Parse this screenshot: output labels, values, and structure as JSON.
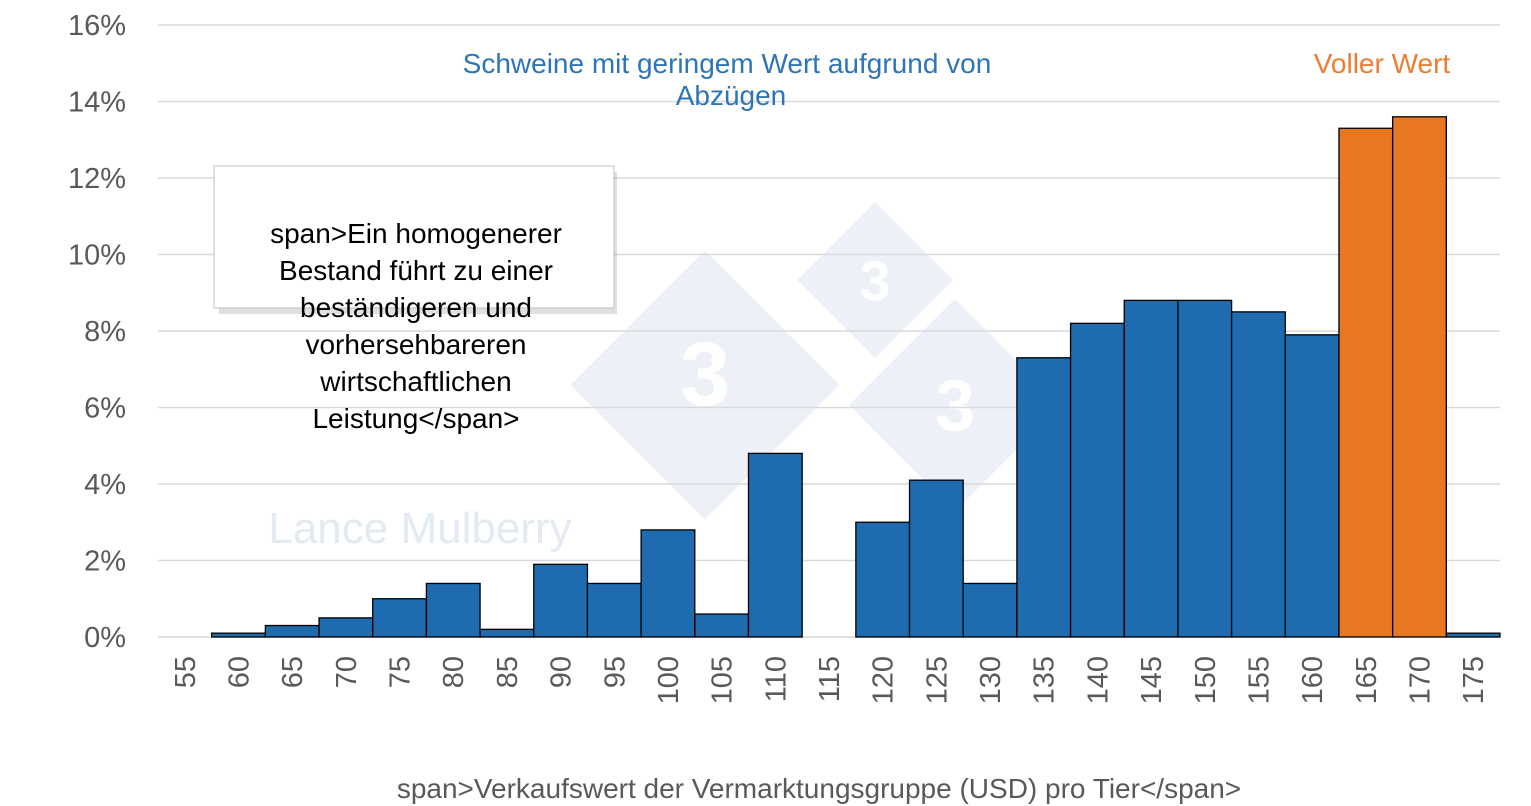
{
  "chart_data": {
    "type": "bar",
    "categories": [
      "55",
      "60",
      "65",
      "70",
      "75",
      "80",
      "85",
      "90",
      "95",
      "100",
      "105",
      "110",
      "115",
      "120",
      "125",
      "130",
      "135",
      "140",
      "145",
      "150",
      "155",
      "160",
      "165",
      "170",
      "175"
    ],
    "values": [
      0,
      0.1,
      0.3,
      0.5,
      1.0,
      1.4,
      0.2,
      1.9,
      1.4,
      2.8,
      0.6,
      4.8,
      0,
      3.0,
      4.1,
      1.4,
      7.3,
      8.2,
      8.8,
      8.8,
      8.5,
      7.9,
      13.3,
      13.6,
      0.1
    ],
    "bar_groups": [
      "low",
      "low",
      "low",
      "low",
      "low",
      "low",
      "low",
      "low",
      "low",
      "low",
      "low",
      "low",
      "low",
      "low",
      "low",
      "low",
      "low",
      "low",
      "low",
      "low",
      "low",
      "low",
      "full",
      "full",
      "low"
    ],
    "ylim": [
      0,
      16
    ],
    "y_ticks": [
      "0%",
      "2%",
      "4%",
      "6%",
      "8%",
      "10%",
      "12%",
      "14%",
      "16%"
    ],
    "y_tick_values": [
      0,
      2,
      4,
      6,
      8,
      10,
      12,
      14,
      16
    ],
    "xlabel": "span>Verkaufswert der Vermarktungsgruppe (USD) pro Tier</span>",
    "grid": "horizontal",
    "annotations": {
      "low_value_line1": "Schweine mit geringem Wert aufgrund von",
      "low_value_line2": "Abzügen",
      "full_value": "Voller Wert",
      "callout_lines": [
        "span>Ein homogenerer",
        "Bestand führt zu einer",
        "beständigeren und",
        "vorhersehbareren",
        "wirtschaftlichen",
        "Leistung</span>"
      ]
    },
    "watermark": "Lance Mulberry",
    "colors": {
      "low": "#1F6BB0",
      "full": "#E87722",
      "bar_outline": "#000000",
      "grid": "#D9D9D9"
    }
  }
}
